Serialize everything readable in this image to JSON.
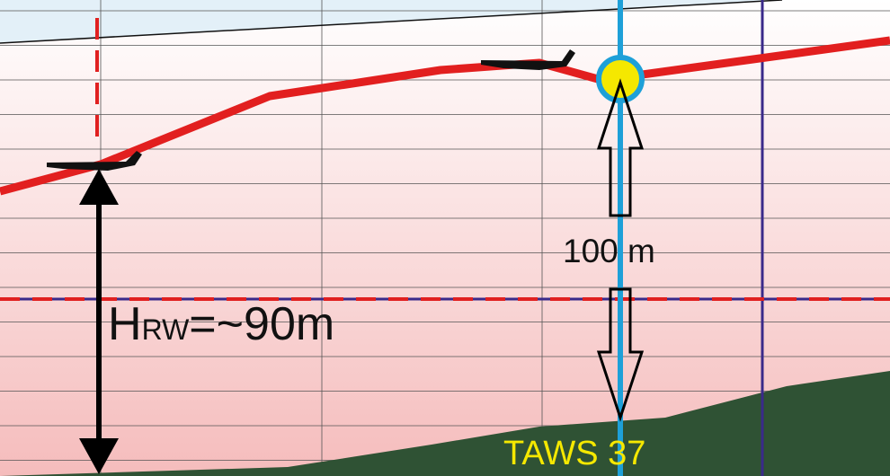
{
  "labels": {
    "height_runway": {
      "main": "H",
      "sub": "RW",
      "rest": "=~90m"
    },
    "distance": "100 m",
    "taws": "TAWS 37"
  }
}
